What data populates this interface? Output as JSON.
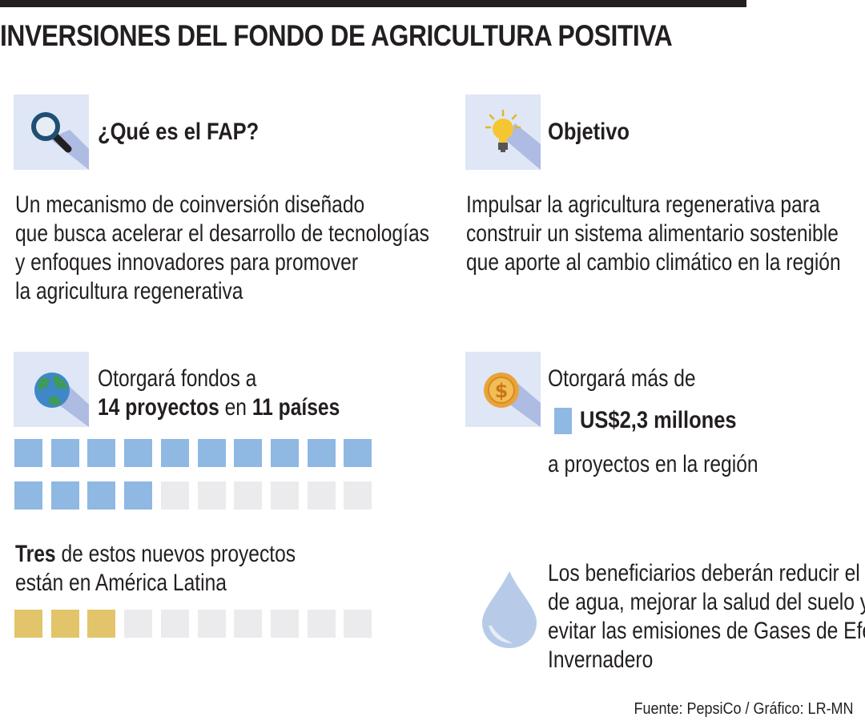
{
  "title": "INVERSIONES DEL FONDO DE AGRICULTURA POSITIVA",
  "fap": {
    "heading": "¿Qué es el FAP?",
    "icon": "magnifier-icon",
    "lines": [
      "Un mecanismo de coinversión diseñado",
      "que busca acelerar el desarrollo de tecnologías",
      "y enfoques innovadores para promover",
      "la agricultura regenerativa"
    ]
  },
  "objetivo": {
    "heading": "Objetivo",
    "icon": "lightbulb-icon",
    "lines": [
      "Impulsar la agricultura regenerativa para",
      "construir un sistema alimentario sostenible",
      "que aporte al cambio climático en la región"
    ]
  },
  "fondos": {
    "icon": "globe-icon",
    "line1": "Otorgará fondos a",
    "projects": "14 proyectos",
    "connector": "en",
    "countries": "11 países",
    "projects_count": 14,
    "total_squares": 20
  },
  "latam": {
    "bold": "Tres",
    "rest": "de estos nuevos proyectos",
    "line2": "están en América Latina",
    "count": 3,
    "total_squares": 10
  },
  "dinero": {
    "icon": "dollar-coin-icon",
    "line1": "Otorgará más de",
    "amount": "US$2,3 millones",
    "line3": "a proyectos en la región"
  },
  "agua": {
    "icon": "water-drop-icon",
    "lines": [
      "Los beneficiarios deberán reducir el uso",
      "de agua, mejorar la salud del suelo y",
      "evitar las emisiones de Gases de Efecto",
      "Invernadero"
    ]
  },
  "source": "Fuente: PepsiCo / Gráfico: LR-MN",
  "colors": {
    "icon_bg": "#dfe6f5",
    "blue": "#8fb8e3",
    "gold": "#e2c46a",
    "grey": "#ebebed"
  }
}
